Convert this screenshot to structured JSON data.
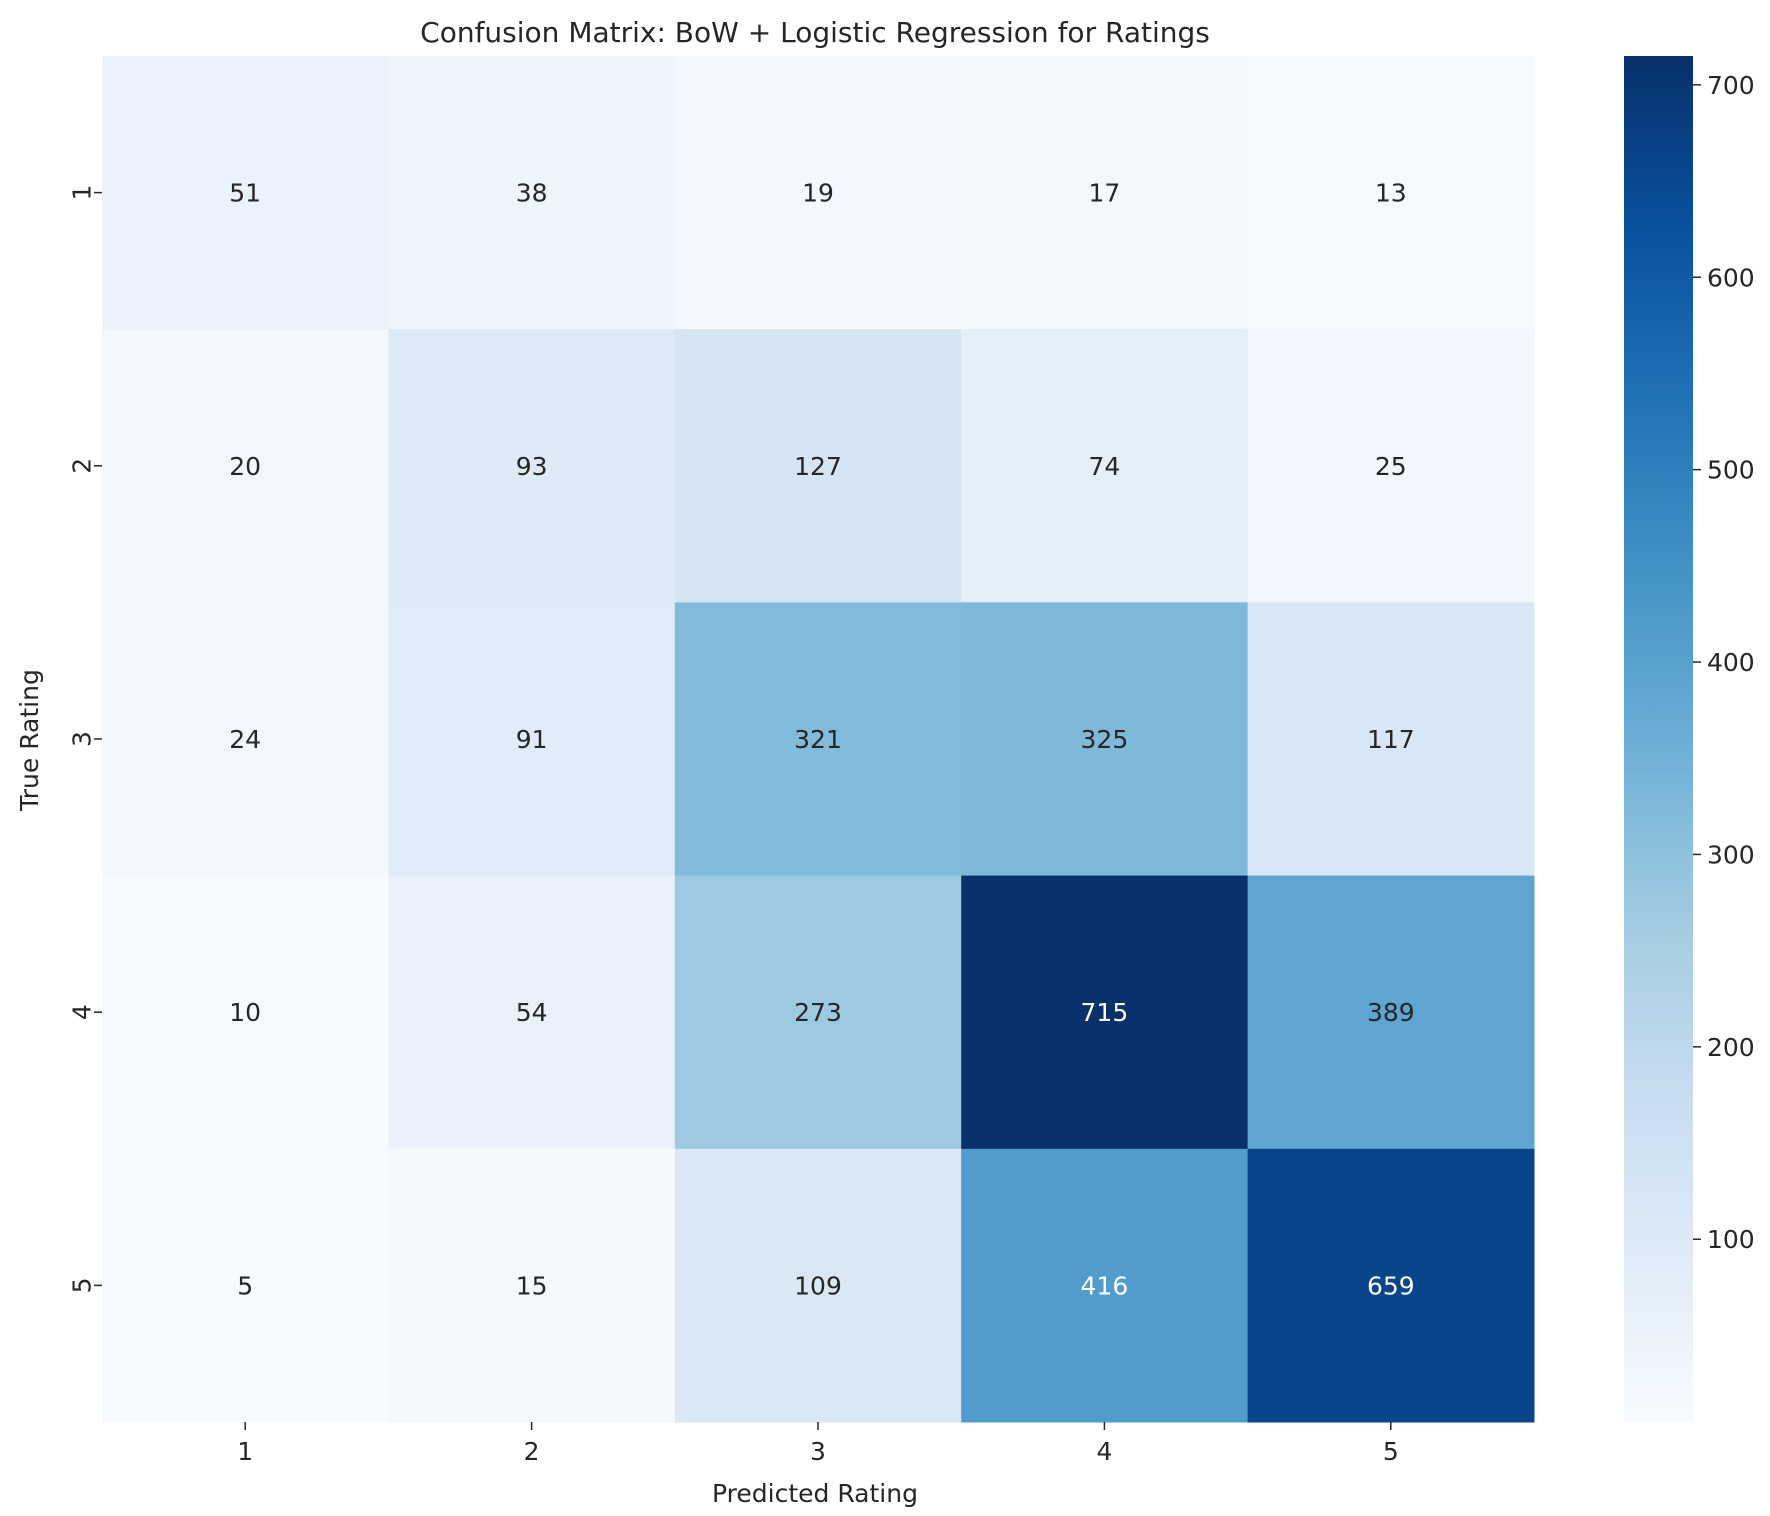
{
  "chart_data": {
    "type": "heatmap",
    "title": "Confusion Matrix: BoW + Logistic Regression for Ratings",
    "xlabel": "Predicted Rating",
    "ylabel": "True Rating",
    "x_categories": [
      "1",
      "2",
      "3",
      "4",
      "5"
    ],
    "y_categories": [
      "1",
      "2",
      "3",
      "4",
      "5"
    ],
    "values": [
      [
        51,
        38,
        19,
        17,
        13
      ],
      [
        20,
        93,
        127,
        74,
        25
      ],
      [
        24,
        91,
        321,
        325,
        117
      ],
      [
        10,
        54,
        273,
        715,
        389
      ],
      [
        5,
        15,
        109,
        416,
        659
      ]
    ],
    "colormap": "Blues",
    "color_range": [
      5,
      715
    ],
    "colorbar_ticks": [
      "100",
      "200",
      "300",
      "400",
      "500",
      "600",
      "700"
    ],
    "colors": {
      "text_dark": "#262626",
      "text_light": "#ffffff"
    }
  }
}
